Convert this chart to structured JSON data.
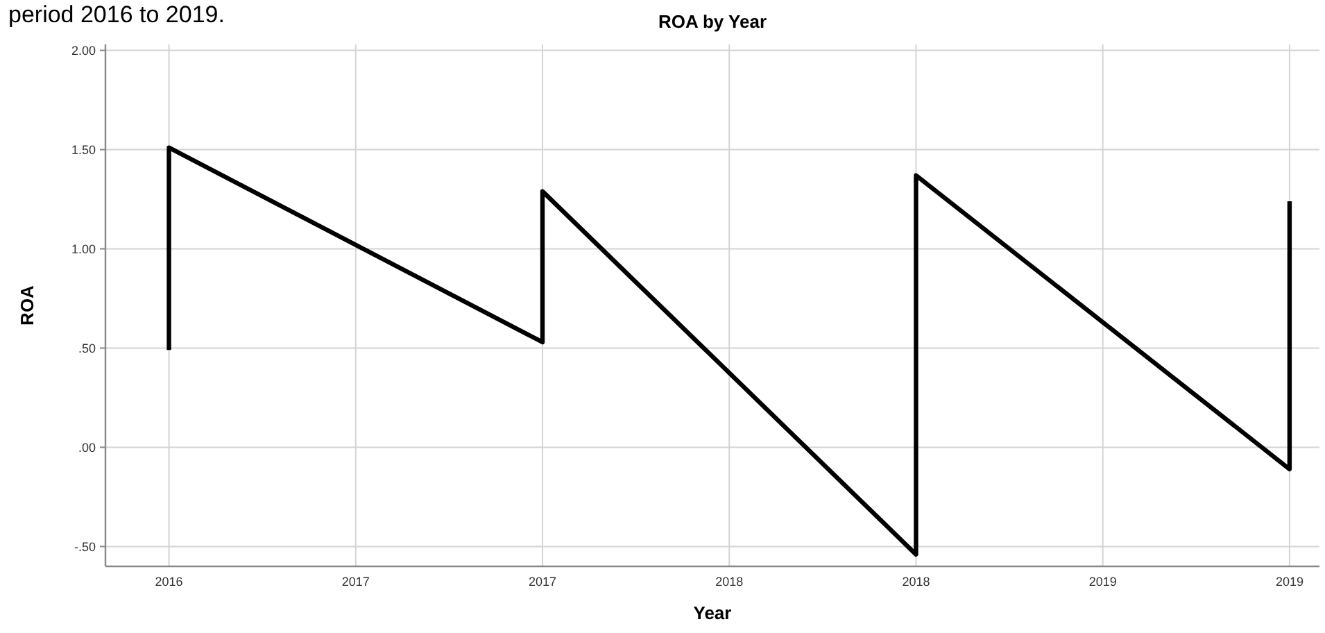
{
  "chart_data": {
    "type": "line",
    "title": "ROA by Year",
    "xlabel": "Year",
    "ylabel": "ROA",
    "annotations": [
      "period 2016 to 2019."
    ],
    "x": [
      2016,
      2016,
      2017,
      2017,
      2018,
      2018,
      2019,
      2019
    ],
    "series": [
      {
        "color": "#000000",
        "values": [
          0.49,
          1.51,
          0.53,
          1.29,
          -0.54,
          1.37,
          -0.11,
          1.24
        ]
      }
    ],
    "xlim": [
      2015.83,
      2019.08
    ],
    "xticks": [
      {
        "value": 2016,
        "label": "2016"
      },
      {
        "value": 2016.5,
        "label": "2017"
      },
      {
        "value": 2017,
        "label": "2017"
      },
      {
        "value": 2017.5,
        "label": "2018"
      },
      {
        "value": 2018,
        "label": "2018"
      },
      {
        "value": 2018.5,
        "label": "2019"
      },
      {
        "value": 2019,
        "label": "2019"
      }
    ],
    "ylim": [
      -0.6,
      2.03
    ],
    "yticks": [
      {
        "value": -0.5,
        "label": "-.50"
      },
      {
        "value": 0,
        "label": ".00"
      },
      {
        "value": 0.5,
        "label": ".50"
      },
      {
        "value": 1,
        "label": "1.00"
      },
      {
        "value": 1.5,
        "label": "1.50"
      },
      {
        "value": 2,
        "label": "2.00"
      }
    ],
    "grid": true,
    "marker": "none",
    "line_style": "solid"
  }
}
